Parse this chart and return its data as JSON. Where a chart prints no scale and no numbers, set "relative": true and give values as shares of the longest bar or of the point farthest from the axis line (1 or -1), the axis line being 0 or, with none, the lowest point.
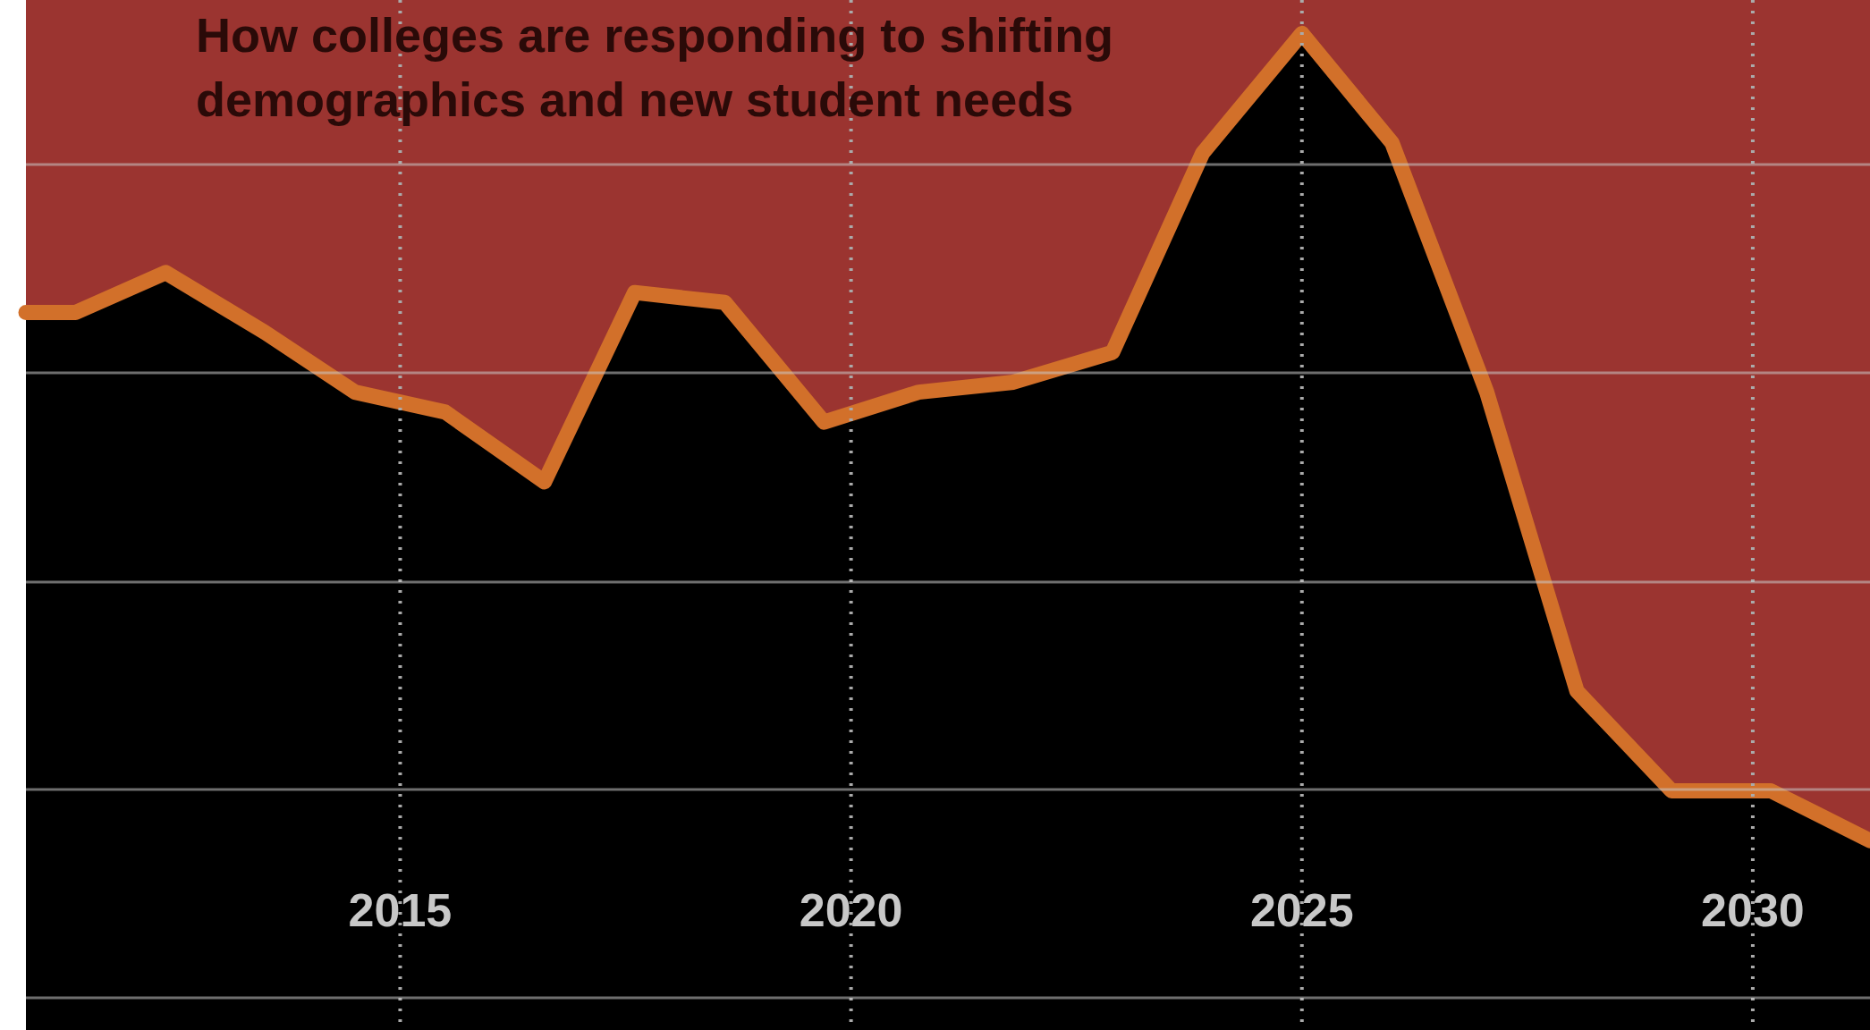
{
  "chart_data": {
    "type": "area",
    "title": "How colleges are responding to shifting\ndemographics and new student needs",
    "relative": true,
    "x": [
      2010.85,
      2011.4,
      2012.4,
      2013.5,
      2014.5,
      2015.5,
      2016.6,
      2017.6,
      2018.6,
      2019.7,
      2020.75,
      2021.8,
      2022.9,
      2023.9,
      2025.0,
      2026.0,
      2027.05,
      2028.05,
      2029.1,
      2030.2,
      2031.3
    ],
    "series": [
      {
        "color": "#d2702a",
        "values": [
          0.72,
          0.72,
          0.76,
          0.7,
          0.64,
          0.62,
          0.55,
          0.74,
          0.73,
          0.61,
          0.64,
          0.65,
          0.68,
          0.88,
          1.0,
          0.89,
          0.64,
          0.34,
          0.24,
          0.24,
          0.19
        ]
      }
    ],
    "xlim": [
      2010.85,
      2031.3
    ],
    "xticks": [
      2015,
      2020,
      2025,
      2030
    ],
    "grid": true
  }
}
